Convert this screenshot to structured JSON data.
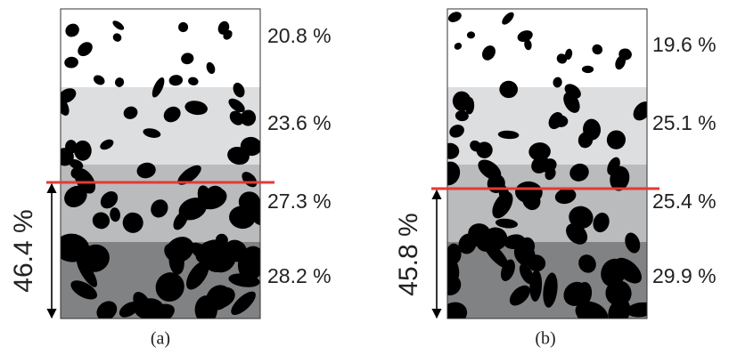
{
  "panels": [
    {
      "caption": "(a)",
      "height_label": "46.4 %",
      "layers": [
        "20.8 %",
        "23.6 %",
        "27.3 %",
        "28.2 %"
      ]
    },
    {
      "caption": "(b)",
      "height_label": "45.8 %",
      "layers": [
        "19.6 %",
        "25.1 %",
        "25.4 %",
        "29.9 %"
      ]
    }
  ]
}
